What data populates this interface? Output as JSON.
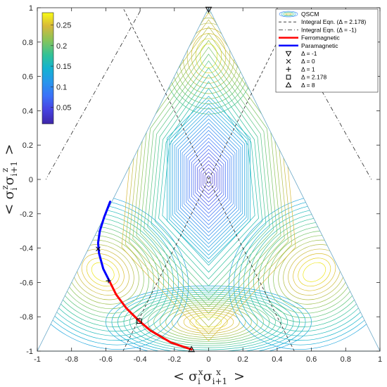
{
  "chart_data": {
    "type": "contour",
    "xlabel_parts": [
      "< σ",
      "i",
      "x",
      "σ",
      "i+1",
      "x",
      " >"
    ],
    "ylabel_parts": [
      "< σ",
      "i",
      "z",
      "σ",
      "i+1",
      "z",
      " >"
    ],
    "xlim": [
      -1,
      1
    ],
    "ylim": [
      -1,
      1
    ],
    "x_ticks": [
      "-1",
      "-0.8",
      "-0.6",
      "-0.4",
      "-0.2",
      "0",
      "0.2",
      "0.4",
      "0.6",
      "0.8",
      "1"
    ],
    "y_ticks": [
      "1",
      "0.8",
      "0.6",
      "0.4",
      "0.2",
      "0",
      "-0.2",
      "-0.4",
      "-0.6",
      "-0.8",
      "-1"
    ],
    "colorbar": {
      "range": [
        0.01,
        0.28
      ],
      "ticks": [
        "0.25",
        "0.2",
        "0.15",
        "0.1",
        "0.05"
      ],
      "tick_values": [
        0.25,
        0.2,
        0.15,
        0.1,
        0.05
      ],
      "colormap": "parula"
    },
    "region_triangle": [
      [
        -1,
        -1
      ],
      [
        1,
        -1
      ],
      [
        0,
        1
      ]
    ],
    "legend": [
      {
        "label": "QSCM",
        "style": "contour"
      },
      {
        "label": "Integral Eqn. (Δ = 2.178)",
        "style": "dashed"
      },
      {
        "label": "Integral Eqn. (Δ = -1)",
        "style": "dashdot"
      },
      {
        "label": "Ferromagnetic",
        "style": "line",
        "color": "#ff0000"
      },
      {
        "label": "Paramagnetic",
        "style": "line",
        "color": "#0000ff"
      },
      {
        "label": "Δ = -1",
        "style": "triangle-down"
      },
      {
        "label": "Δ = 0",
        "style": "x"
      },
      {
        "label": "Δ = 1",
        "style": "plus"
      },
      {
        "label": "Δ = 2.178",
        "style": "square"
      },
      {
        "label": "Δ = 8",
        "style": "triangle-up"
      }
    ],
    "series": [
      {
        "name": "Integral Eqn. (Δ = 2.178)",
        "style": "dashed",
        "x": [
          -0.5,
          0.5
        ],
        "y": [
          -1,
          1
        ]
      },
      {
        "name": "Integral Eqn. (Δ = 2.178)",
        "style": "dashed",
        "x": [
          0.5,
          -0.5
        ],
        "y": [
          -1,
          1
        ]
      },
      {
        "name": "Integral Eqn. (Δ = -1)",
        "style": "dashdot",
        "x": [
          -0.4,
          -0.95
        ],
        "y": [
          0.98,
          0.0
        ]
      },
      {
        "name": "Integral Eqn. (Δ = -1)",
        "style": "dashdot",
        "x": [
          0.4,
          0.95
        ],
        "y": [
          0.98,
          0.0
        ]
      },
      {
        "name": "Ferromagnetic",
        "color": "#ff0000",
        "x": [
          -0.1,
          -0.22,
          -0.34,
          -0.41,
          -0.48,
          -0.54,
          -0.58
        ],
        "y": [
          -0.99,
          -0.95,
          -0.88,
          -0.82,
          -0.75,
          -0.67,
          -0.59
        ]
      },
      {
        "name": "Paramagnetic",
        "color": "#0000ff",
        "x": [
          -0.58,
          -0.615,
          -0.64,
          -0.645,
          -0.635,
          -0.61,
          -0.575
        ],
        "y": [
          -0.59,
          -0.52,
          -0.43,
          -0.37,
          -0.3,
          -0.22,
          -0.13
        ]
      }
    ],
    "markers": [
      {
        "name": "Δ = -1",
        "symbol": "triangle-down",
        "x": 0.0,
        "y": 0.99
      },
      {
        "name": "Δ = 0",
        "symbol": "x",
        "x": -0.645,
        "y": -0.405
      },
      {
        "name": "Δ = 1",
        "symbol": "plus",
        "x": -0.585,
        "y": -0.59
      },
      {
        "name": "Δ = 2.178",
        "symbol": "square",
        "x": -0.405,
        "y": -0.825
      },
      {
        "name": "Δ = 8",
        "symbol": "triangle-up",
        "x": -0.1,
        "y": -0.99
      }
    ]
  }
}
